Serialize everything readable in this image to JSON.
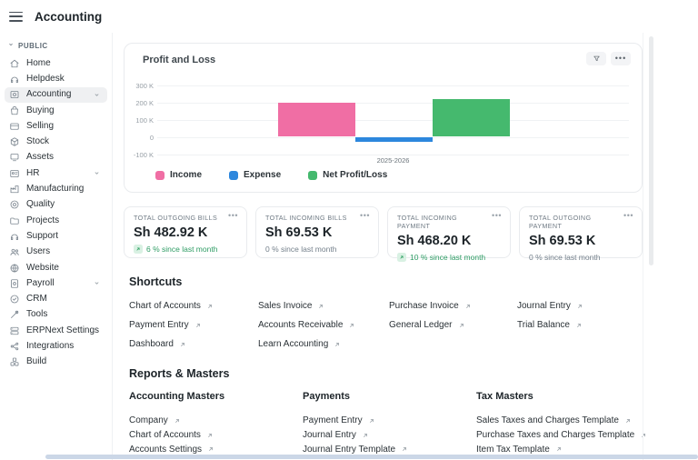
{
  "header": {
    "title": "Accounting"
  },
  "sidebar": {
    "section_label": "PUBLIC",
    "items": [
      {
        "label": "Home",
        "icon": "home",
        "active": false,
        "expandable": false
      },
      {
        "label": "Helpdesk",
        "icon": "headset",
        "active": false,
        "expandable": false
      },
      {
        "label": "Accounting",
        "icon": "accounting",
        "active": true,
        "expandable": true
      },
      {
        "label": "Buying",
        "icon": "bag",
        "active": false,
        "expandable": false
      },
      {
        "label": "Selling",
        "icon": "card",
        "active": false,
        "expandable": false
      },
      {
        "label": "Stock",
        "icon": "box",
        "active": false,
        "expandable": false
      },
      {
        "label": "Assets",
        "icon": "device",
        "active": false,
        "expandable": false
      },
      {
        "label": "HR",
        "icon": "idcard",
        "active": false,
        "expandable": true
      },
      {
        "label": "Manufacturing",
        "icon": "factory",
        "active": false,
        "expandable": false
      },
      {
        "label": "Quality",
        "icon": "target",
        "active": false,
        "expandable": false
      },
      {
        "label": "Projects",
        "icon": "folder",
        "active": false,
        "expandable": false
      },
      {
        "label": "Support",
        "icon": "headset",
        "active": false,
        "expandable": false
      },
      {
        "label": "Users",
        "icon": "users",
        "active": false,
        "expandable": false
      },
      {
        "label": "Website",
        "icon": "globe",
        "active": false,
        "expandable": false
      },
      {
        "label": "Payroll",
        "icon": "payroll",
        "active": false,
        "expandable": true
      },
      {
        "label": "CRM",
        "icon": "crm",
        "active": false,
        "expandable": false
      },
      {
        "label": "Tools",
        "icon": "tools",
        "active": false,
        "expandable": false
      },
      {
        "label": "ERPNext Settings",
        "icon": "settings-stack",
        "active": false,
        "expandable": false
      },
      {
        "label": "Integrations",
        "icon": "share-nodes",
        "active": false,
        "expandable": false
      },
      {
        "label": "Build",
        "icon": "blocks",
        "active": false,
        "expandable": false
      }
    ]
  },
  "chart_card": {
    "title": "Profit and Loss",
    "chart_data": {
      "type": "bar",
      "title": "Profit and Loss",
      "categories": [
        "2025-2026"
      ],
      "series": [
        {
          "name": "Income",
          "color": "#F06EA4",
          "values": [
            195
          ]
        },
        {
          "name": "Expense",
          "color": "#2D87DD",
          "values": [
            -30
          ]
        },
        {
          "name": "Net Profit/Loss",
          "color": "#45B96E",
          "values": [
            220
          ]
        }
      ],
      "unit": "K",
      "ylim": [
        -150,
        350
      ],
      "yticks": [
        {
          "label": "300 K",
          "value": 300
        },
        {
          "label": "200 K",
          "value": 200
        },
        {
          "label": "100 K",
          "value": 100
        },
        {
          "label": "0",
          "value": 0
        },
        {
          "label": "-100 K",
          "value": -100
        }
      ],
      "xlabel": "2025-2026",
      "legend_position": "bottom",
      "grid": true
    }
  },
  "stat_cards": [
    {
      "title": "TOTAL OUTGOING BILLS",
      "value": "Sh 482.92 K",
      "change": "6 % since last month",
      "trend": "up"
    },
    {
      "title": "TOTAL INCOMING BILLS",
      "value": "Sh 69.53 K",
      "change": "0 % since last month",
      "trend": "flat"
    },
    {
      "title": "TOTAL INCOMING PAYMENT",
      "value": "Sh 468.20 K",
      "change": "10 % since last month",
      "trend": "up"
    },
    {
      "title": "TOTAL OUTGOING PAYMENT",
      "value": "Sh 69.53 K",
      "change": "0 % since last month",
      "trend": "flat"
    }
  ],
  "shortcuts": {
    "heading": "Shortcuts",
    "columns": [
      [
        "Chart of Accounts",
        "Payment Entry",
        "Dashboard"
      ],
      [
        "Sales Invoice",
        "Accounts Receivable",
        "Learn Accounting"
      ],
      [
        "Purchase Invoice",
        "General Ledger"
      ],
      [
        "Journal Entry",
        "Trial Balance"
      ]
    ]
  },
  "reports": {
    "heading": "Reports & Masters",
    "groups": [
      {
        "title": "Accounting Masters",
        "links": [
          "Company",
          "Chart of Accounts",
          "Accounts Settings"
        ]
      },
      {
        "title": "Payments",
        "links": [
          "Payment Entry",
          "Journal Entry",
          "Journal Entry Template"
        ]
      },
      {
        "title": "Tax Masters",
        "links": [
          "Sales Taxes and Charges Template",
          "Purchase Taxes and Charges Template",
          "Item Tax Template"
        ]
      }
    ]
  },
  "colors": {
    "positive": "#2E9C64",
    "muted": "#74808B",
    "grid": "#F0F2F4"
  }
}
